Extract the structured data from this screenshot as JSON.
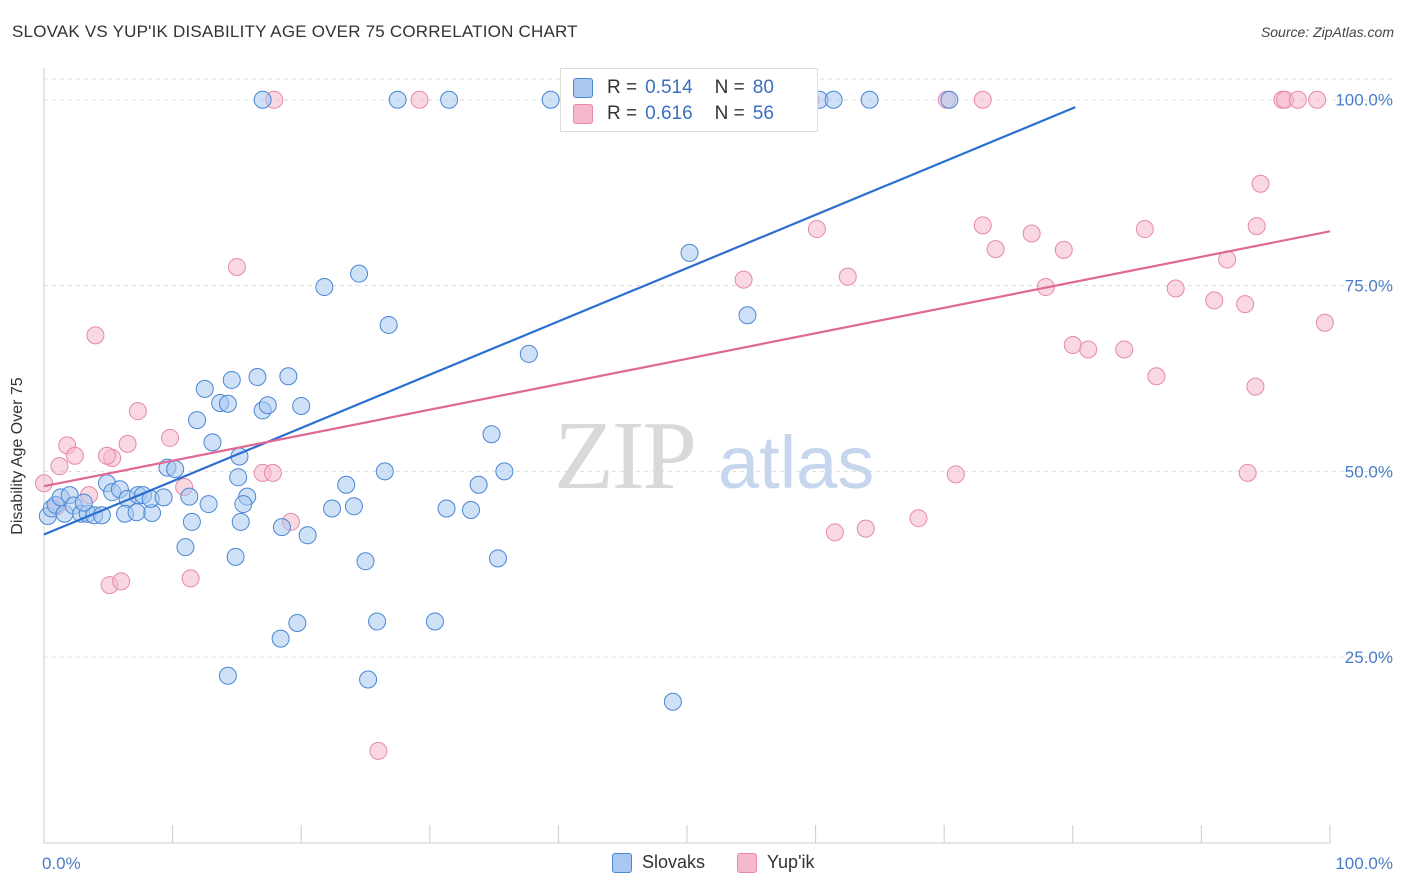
{
  "title": "SLOVAK VS YUP'IK DISABILITY AGE OVER 75 CORRELATION CHART",
  "source": "Source: ZipAtlas.com",
  "watermark": {
    "zip": "ZIP",
    "atlas": "atlas"
  },
  "legend": {
    "rows": [
      {
        "r_label": "R = ",
        "r_value": "0.514",
        "n_label": "N = ",
        "n_value": "80"
      },
      {
        "r_label": "R = ",
        "r_value": "0.616",
        "n_label": "N = ",
        "n_value": "56"
      }
    ]
  },
  "bottom_legend": [
    "Slovaks",
    "Yup'ik"
  ],
  "colors": {
    "slovaks_fill": "#a8c8f0",
    "slovaks_stroke": "#4a86d4",
    "slovaks_line": "#2b6fd1",
    "yupik_fill": "#f6b8cb",
    "yupik_stroke": "#e58aa8",
    "yupik_line": "#e06892",
    "grid": "#dddddd",
    "tick_text": "#4a7cc9"
  },
  "chart_data": {
    "type": "scatter",
    "title": "SLOVAK VS YUP'IK DISABILITY AGE OVER 75 CORRELATION CHART",
    "xlabel": "",
    "ylabel": "Disability Age Over 75",
    "xlim": [
      0,
      100
    ],
    "ylim": [
      0,
      104
    ],
    "x_tick_labels": [
      "0.0%",
      "100.0%"
    ],
    "y_ticks": [
      25,
      50,
      75,
      100
    ],
    "y_tick_labels": [
      "25.0%",
      "50.0%",
      "75.0%",
      "100.0%"
    ],
    "series": [
      {
        "name": "Slovaks",
        "r": 0.514,
        "n": 80,
        "trend": {
          "x": [
            0,
            80.2
          ],
          "y": [
            41.5,
            99
          ]
        },
        "points": [
          [
            0.3,
            44
          ],
          [
            0.6,
            45
          ],
          [
            0.9,
            45.5
          ],
          [
            1.3,
            46.5
          ],
          [
            1.6,
            44.3
          ],
          [
            2,
            46.8
          ],
          [
            2.3,
            45.4
          ],
          [
            2.9,
            44.3
          ],
          [
            3.4,
            44.3
          ],
          [
            3.9,
            44.1
          ],
          [
            4.5,
            44.1
          ],
          [
            4.9,
            48.4
          ],
          [
            5.3,
            47.2
          ],
          [
            5.9,
            47.6
          ],
          [
            6.5,
            46.3
          ],
          [
            6.3,
            44.3
          ],
          [
            7.3,
            46.8
          ],
          [
            7.7,
            46.8
          ],
          [
            8.4,
            44.4
          ],
          [
            8.3,
            46.3
          ],
          [
            9.3,
            46.5
          ],
          [
            9.6,
            50.5
          ],
          [
            10.2,
            50.3
          ],
          [
            11.3,
            46.6
          ],
          [
            11,
            39.8
          ],
          [
            11.5,
            43.2
          ],
          [
            11.9,
            56.9
          ],
          [
            12.5,
            61.1
          ],
          [
            12.8,
            45.6
          ],
          [
            13.1,
            53.9
          ],
          [
            13.7,
            59.2
          ],
          [
            14.3,
            59.1
          ],
          [
            14.6,
            62.3
          ],
          [
            14.9,
            38.5
          ],
          [
            15.1,
            49.2
          ],
          [
            15.3,
            43.2
          ],
          [
            15.8,
            46.6
          ],
          [
            16.6,
            62.7
          ],
          [
            17,
            58.2
          ],
          [
            17.4,
            58.9
          ],
          [
            15.5,
            45.6
          ],
          [
            18.5,
            42.5
          ],
          [
            19,
            62.8
          ],
          [
            20,
            58.8
          ],
          [
            20.5,
            41.4
          ],
          [
            17,
            100
          ],
          [
            15.2,
            52
          ],
          [
            14.3,
            22.5
          ],
          [
            19.7,
            29.6
          ],
          [
            18.4,
            27.5
          ],
          [
            22.4,
            45
          ],
          [
            23.5,
            48.2
          ],
          [
            24.1,
            45.3
          ],
          [
            25,
            37.9
          ],
          [
            25.9,
            29.8
          ],
          [
            26.5,
            50
          ],
          [
            24.5,
            76.6
          ],
          [
            21.8,
            74.8
          ],
          [
            26.8,
            69.7
          ],
          [
            27.5,
            100
          ],
          [
            31.3,
            45
          ],
          [
            31.5,
            100
          ],
          [
            33.8,
            48.2
          ],
          [
            34.8,
            55
          ],
          [
            35.3,
            38.3
          ],
          [
            35.8,
            50
          ],
          [
            37.7,
            65.8
          ],
          [
            39.4,
            100
          ],
          [
            50.2,
            79.4
          ],
          [
            54.7,
            71
          ],
          [
            48.9,
            19
          ],
          [
            60.3,
            100
          ],
          [
            61.4,
            100
          ],
          [
            64.2,
            100
          ],
          [
            70.4,
            100
          ],
          [
            25.2,
            22
          ],
          [
            30.4,
            29.8
          ],
          [
            33.2,
            44.8
          ],
          [
            3.1,
            45.8
          ],
          [
            7.2,
            44.5
          ]
        ]
      },
      {
        "name": "Yup'ik",
        "r": 0.616,
        "n": 56,
        "trend": {
          "x": [
            0,
            100
          ],
          "y": [
            48,
            82.3
          ]
        },
        "points": [
          [
            0,
            48.4
          ],
          [
            1.2,
            50.7
          ],
          [
            1.8,
            53.5
          ],
          [
            2.4,
            52.1
          ],
          [
            3.5,
            46.8
          ],
          [
            4,
            68.3
          ],
          [
            5.3,
            51.8
          ],
          [
            4.9,
            52.1
          ],
          [
            5.1,
            34.7
          ],
          [
            6,
            35.2
          ],
          [
            6.5,
            53.7
          ],
          [
            7.3,
            58.1
          ],
          [
            9.8,
            54.5
          ],
          [
            10.9,
            47.9
          ],
          [
            11.4,
            35.6
          ],
          [
            15,
            77.5
          ],
          [
            17,
            49.8
          ],
          [
            17.8,
            49.8
          ],
          [
            19.2,
            43.2
          ],
          [
            26,
            12.4
          ],
          [
            29.2,
            100
          ],
          [
            54.4,
            75.8
          ],
          [
            59.6,
            100
          ],
          [
            60.1,
            82.6
          ],
          [
            61.5,
            41.8
          ],
          [
            62.5,
            76.2
          ],
          [
            63.9,
            42.3
          ],
          [
            68,
            43.7
          ],
          [
            70.2,
            100
          ],
          [
            70.9,
            49.6
          ],
          [
            73,
            100
          ],
          [
            73,
            83.1
          ],
          [
            74,
            79.9
          ],
          [
            76.8,
            82
          ],
          [
            77.9,
            74.8
          ],
          [
            79.3,
            79.8
          ],
          [
            80,
            67
          ],
          [
            81.2,
            66.4
          ],
          [
            84,
            66.4
          ],
          [
            85.6,
            82.6
          ],
          [
            86.5,
            62.8
          ],
          [
            88,
            74.6
          ],
          [
            91,
            73
          ],
          [
            92,
            78.5
          ],
          [
            93.4,
            72.5
          ],
          [
            94.2,
            61.4
          ],
          [
            94.6,
            88.7
          ],
          [
            94.3,
            83
          ],
          [
            96.3,
            100
          ],
          [
            96.5,
            100
          ],
          [
            97.5,
            100
          ],
          [
            99,
            100
          ],
          [
            99.6,
            70
          ],
          [
            93.6,
            49.8
          ],
          [
            1,
            45.3
          ],
          [
            17.9,
            100
          ]
        ]
      }
    ]
  }
}
